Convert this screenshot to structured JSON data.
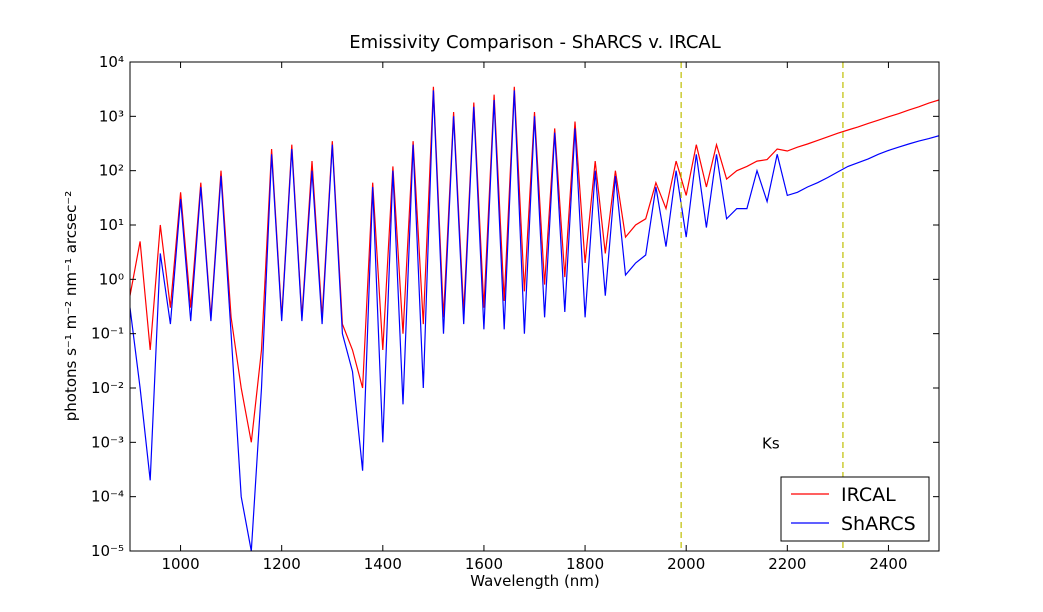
{
  "chart_data": {
    "type": "line",
    "title": "Emissivity Comparison - ShARCS v. IRCAL",
    "x_label": "Wavelength (nm)",
    "y_label": "photons s⁻¹ m⁻² nm⁻¹ arcsec⁻²",
    "log_y": true,
    "xlim": [
      900,
      2500
    ],
    "ylim": [
      1e-05,
      10000
    ],
    "xticks": [
      1000,
      1200,
      1400,
      1600,
      1800,
      2000,
      2200,
      2400
    ],
    "yticks": [
      {
        "value": 1e-05,
        "label": "10⁻⁵"
      },
      {
        "value": 0.0001,
        "label": "10⁻⁴"
      },
      {
        "value": 0.001,
        "label": "10⁻³"
      },
      {
        "value": 0.01,
        "label": "10⁻²"
      },
      {
        "value": 0.1,
        "label": "10⁻¹"
      },
      {
        "value": 1,
        "label": "10⁰"
      },
      {
        "value": 10,
        "label": "10¹"
      },
      {
        "value": 100,
        "label": "10²"
      },
      {
        "value": 1000,
        "label": "10³"
      },
      {
        "value": 10000,
        "label": "10⁴"
      }
    ],
    "legend_position": "lower right",
    "vlines": {
      "x": [
        1990,
        2310
      ],
      "color": "#bfbf00"
    },
    "annotations": [
      {
        "text": "Ks",
        "x": 2150,
        "y": 0.001
      }
    ],
    "x": [
      900,
      920,
      940,
      960,
      980,
      1000,
      1020,
      1040,
      1060,
      1080,
      1100,
      1120,
      1140,
      1160,
      1180,
      1200,
      1220,
      1240,
      1260,
      1280,
      1300,
      1320,
      1340,
      1360,
      1380,
      1400,
      1420,
      1440,
      1460,
      1480,
      1500,
      1520,
      1540,
      1560,
      1580,
      1600,
      1620,
      1640,
      1660,
      1680,
      1700,
      1720,
      1740,
      1760,
      1780,
      1800,
      1820,
      1840,
      1860,
      1880,
      1900,
      1920,
      1940,
      1960,
      1980,
      2000,
      2020,
      2040,
      2060,
      2080,
      2100,
      2120,
      2140,
      2160,
      2180,
      2200,
      2220,
      2240,
      2260,
      2280,
      2300,
      2320,
      2340,
      2360,
      2380,
      2400,
      2420,
      2440,
      2460,
      2480,
      2500
    ],
    "series": [
      {
        "name": "IRCAL",
        "color": "#ff0000",
        "values": [
          0.5,
          5,
          0.05,
          10,
          0.3,
          40,
          0.3,
          60,
          0.2,
          100,
          0.2,
          0.01,
          0.001,
          0.05,
          250,
          0.2,
          300,
          0.2,
          150,
          0.2,
          350,
          0.15,
          0.05,
          0.01,
          60,
          0.05,
          120,
          0.1,
          350,
          0.15,
          3500,
          0.2,
          1200,
          0.25,
          1800,
          0.3,
          2500,
          0.4,
          3500,
          0.6,
          1200,
          0.8,
          600,
          1.1,
          800,
          2,
          150,
          3,
          100,
          6,
          10,
          13,
          60,
          20,
          150,
          35,
          300,
          50,
          300,
          70,
          100,
          120,
          150,
          160,
          250,
          230,
          270,
          310,
          360,
          420,
          490,
          560,
          640,
          740,
          850,
          980,
          1120,
          1300,
          1500,
          1750,
          2000
        ]
      },
      {
        "name": "ShARCS",
        "color": "#0000ff",
        "values": [
          0.3,
          0.01,
          0.0002,
          3,
          0.15,
          30,
          0.17,
          50,
          0.17,
          80,
          0.1,
          0.0001,
          1e-05,
          0.01,
          200,
          0.17,
          250,
          0.17,
          100,
          0.15,
          300,
          0.1,
          0.02,
          0.0003,
          50,
          0.001,
          100,
          0.005,
          300,
          0.01,
          3000,
          0.1,
          1000,
          0.15,
          1500,
          0.12,
          2000,
          0.12,
          3000,
          0.1,
          1000,
          0.2,
          500,
          0.25,
          600,
          0.2,
          100,
          0.5,
          80,
          1.2,
          2,
          2.8,
          50,
          4,
          100,
          6,
          200,
          9,
          200,
          13,
          20,
          20,
          100,
          27,
          200,
          35,
          40,
          50,
          60,
          75,
          95,
          120,
          140,
          165,
          200,
          235,
          270,
          310,
          350,
          390,
          440
        ]
      }
    ]
  }
}
